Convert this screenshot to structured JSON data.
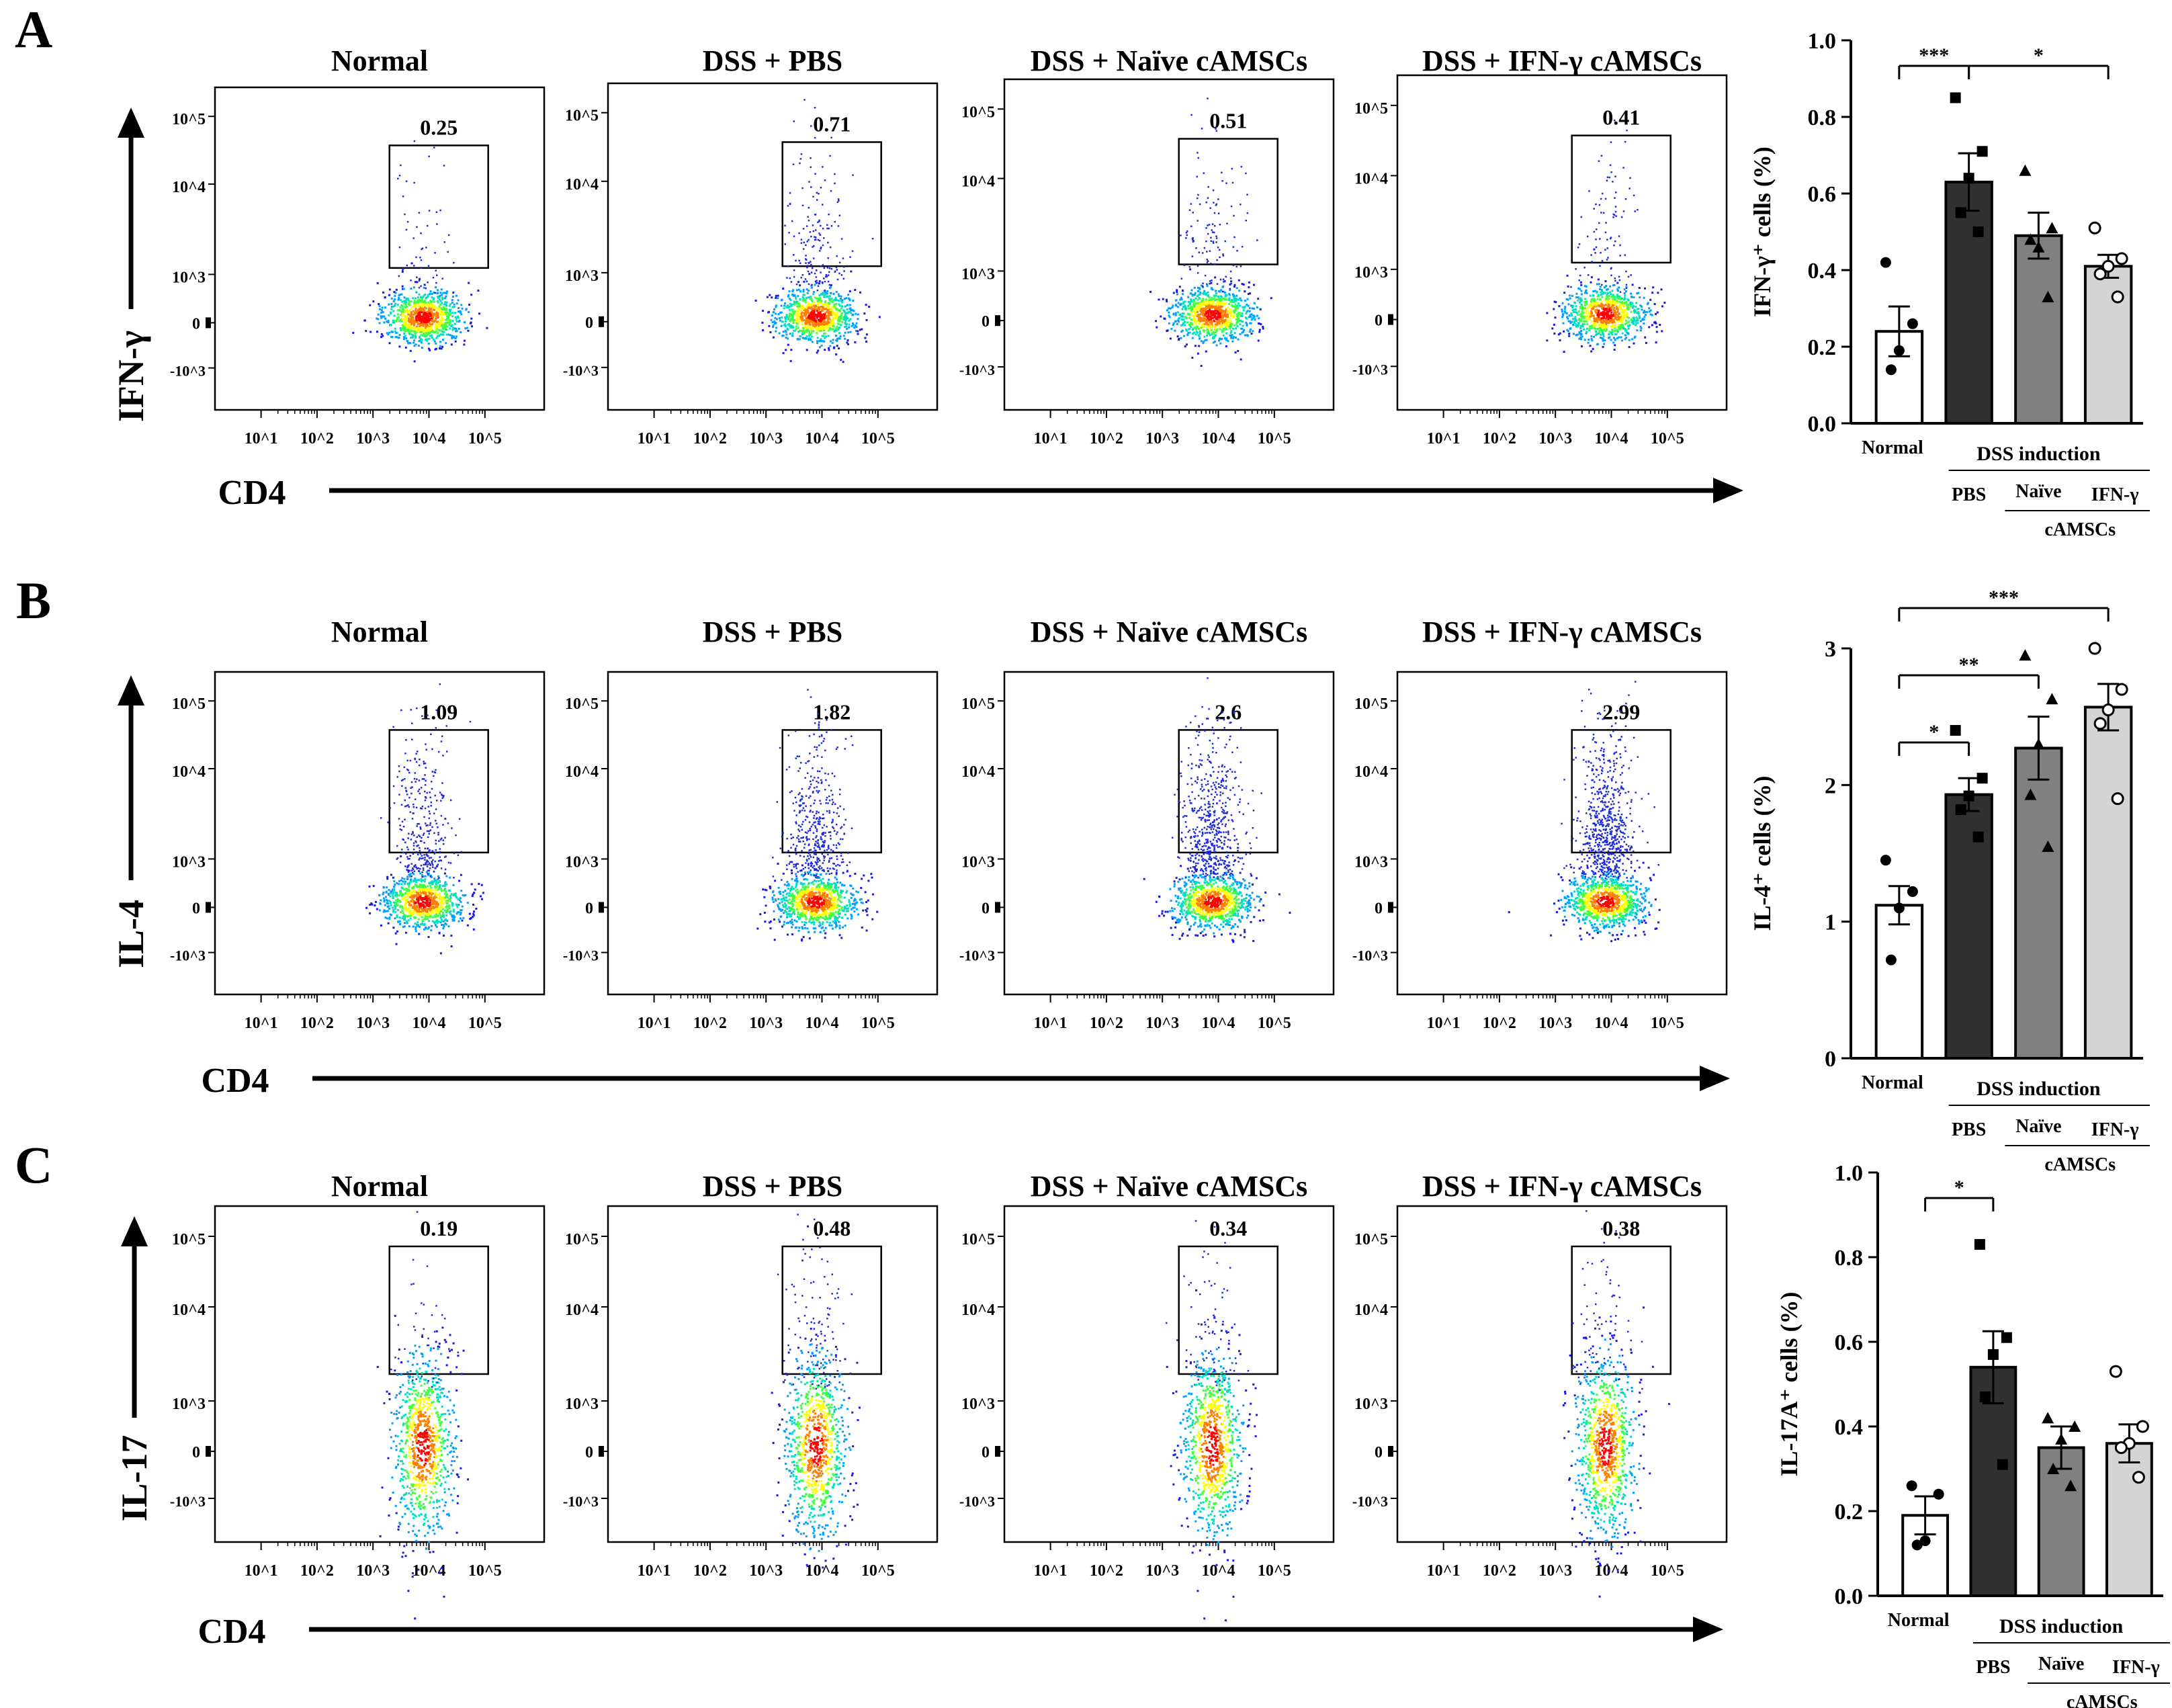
{
  "colors": {
    "ink": "#000000",
    "gate": "#000000",
    "sparse_dot": "#1f2bd6",
    "density_ramp": [
      "#1a1ae6",
      "#00a0ff",
      "#00e0c0",
      "#40ff40",
      "#ffff00",
      "#ff8000",
      "#ff0000"
    ]
  },
  "panels": [
    {
      "letter": "A",
      "y_marker": "IFN-γ",
      "x_marker": "CD4",
      "flow_plots": [
        {
          "title": "Normal",
          "gate_value": "0.25",
          "sparse": 55
        },
        {
          "title": "DSS + PBS",
          "gate_value": "0.71",
          "sparse": 170
        },
        {
          "title": "DSS + Naïve cAMSCs",
          "gate_value": "0.51",
          "sparse": 120
        },
        {
          "title": "DSS + IFN-γ cAMSCs",
          "gate_value": "0.41",
          "sparse": 90
        }
      ],
      "y_ticks": [
        "10^5",
        "10^4",
        "10^3",
        "0",
        "-10^3"
      ],
      "x_ticks": [
        "10^1",
        "10^2",
        "10^3",
        "10^4",
        "10^5"
      ]
    },
    {
      "letter": "B",
      "y_marker": "IL-4",
      "x_marker": "CD4",
      "flow_plots": [
        {
          "title": "Normal",
          "gate_value": "1.09",
          "sparse": 320
        },
        {
          "title": "DSS + PBS",
          "gate_value": "1.82",
          "sparse": 420
        },
        {
          "title": "DSS + Naïve cAMSCs",
          "gate_value": "2.6",
          "sparse": 560
        },
        {
          "title": "DSS + IFN-γ cAMSCs",
          "gate_value": "2.99",
          "sparse": 640
        }
      ],
      "y_ticks": [
        "10^5",
        "10^4",
        "10^3",
        "0",
        "-10^3"
      ],
      "x_ticks": [
        "10^1",
        "10^2",
        "10^3",
        "10^4",
        "10^5"
      ]
    },
    {
      "letter": "C",
      "y_marker": "IL-17",
      "x_marker": "CD4",
      "flow_plots": [
        {
          "title": "Normal",
          "gate_value": "0.19",
          "sparse": 40
        },
        {
          "title": "DSS + PBS",
          "gate_value": "0.48",
          "sparse": 110
        },
        {
          "title": "DSS + Naïve cAMSCs",
          "gate_value": "0.34",
          "sparse": 75
        },
        {
          "title": "DSS + IFN-γ cAMSCs",
          "gate_value": "0.38",
          "sparse": 80
        }
      ],
      "y_ticks": [
        "10^5",
        "10^4",
        "10^3",
        "0",
        "-10^3"
      ],
      "x_ticks": [
        "10^1",
        "10^2",
        "10^3",
        "10^4",
        "10^5"
      ]
    }
  ],
  "chart_data": [
    {
      "type": "bar",
      "panel": "A",
      "ylabel": "IFN-γ⁺ cells (%)",
      "ylim": [
        0,
        1.0
      ],
      "y_ticks": [
        "0.0",
        "0.2",
        "0.4",
        "0.6",
        "0.8",
        "1.0"
      ],
      "categories": [
        "Normal",
        "PBS",
        "Naïve",
        "IFN-γ"
      ],
      "values": [
        0.24,
        0.63,
        0.49,
        0.41
      ],
      "sem": [
        0.065,
        0.075,
        0.06,
        0.03
      ],
      "points": [
        [
          0.42,
          0.26,
          0.19,
          0.14
        ],
        [
          0.85,
          0.71,
          0.64,
          0.55,
          0.5
        ],
        [
          0.66,
          0.51,
          0.46,
          0.48,
          0.33
        ],
        [
          0.51,
          0.43,
          0.41,
          0.39,
          0.33
        ]
      ],
      "markers": [
        "filled-circle",
        "filled-square",
        "filled-triangle",
        "open-circle"
      ],
      "bar_fills": [
        "#ffffff",
        "#303030",
        "#808080",
        "#d4d4d4"
      ],
      "group_label": "DSS induction",
      "subgroup_label": "cAMSCs",
      "significance": [
        {
          "from": 0,
          "to": 1,
          "label": "***"
        },
        {
          "from": 1,
          "to": 3,
          "label": "*"
        }
      ]
    },
    {
      "type": "bar",
      "panel": "B",
      "ylabel": "IL-4⁺ cells (%)",
      "ylim": [
        0,
        3
      ],
      "y_ticks": [
        "0",
        "1",
        "2",
        "3"
      ],
      "categories": [
        "Normal",
        "PBS",
        "Naïve",
        "IFN-γ"
      ],
      "values": [
        1.12,
        1.93,
        2.27,
        2.57
      ],
      "sem": [
        0.14,
        0.12,
        0.23,
        0.17
      ],
      "points": [
        [
          1.45,
          1.22,
          1.1,
          0.72
        ],
        [
          2.4,
          2.05,
          1.92,
          1.82,
          1.62
        ],
        [
          2.95,
          2.63,
          2.3,
          1.93,
          1.55
        ],
        [
          3.0,
          2.7,
          2.55,
          2.45,
          1.9
        ]
      ],
      "markers": [
        "filled-circle",
        "filled-square",
        "filled-triangle",
        "open-circle"
      ],
      "bar_fills": [
        "#ffffff",
        "#303030",
        "#808080",
        "#d4d4d4"
      ],
      "group_label": "DSS induction",
      "subgroup_label": "cAMSCs",
      "significance": [
        {
          "from": 0,
          "to": 1,
          "label": "*"
        },
        {
          "from": 0,
          "to": 2,
          "label": "**"
        },
        {
          "from": 0,
          "to": 3,
          "label": "***"
        }
      ]
    },
    {
      "type": "bar",
      "panel": "C",
      "ylabel": "IL-17A⁺ cells (%)",
      "ylim": [
        0,
        1.0
      ],
      "y_ticks": [
        "0.0",
        "0.2",
        "0.4",
        "0.6",
        "0.8",
        "1.0"
      ],
      "categories": [
        "Normal",
        "PBS",
        "Naïve",
        "IFN-γ"
      ],
      "values": [
        0.19,
        0.54,
        0.35,
        0.36
      ],
      "sem": [
        0.045,
        0.085,
        0.05,
        0.045
      ],
      "points": [
        [
          0.26,
          0.24,
          0.13,
          0.12
        ],
        [
          0.83,
          0.61,
          0.57,
          0.47,
          0.31
        ],
        [
          0.42,
          0.4,
          0.37,
          0.3,
          0.26
        ],
        [
          0.53,
          0.4,
          0.36,
          0.35,
          0.28
        ]
      ],
      "markers": [
        "filled-circle",
        "filled-square",
        "filled-triangle",
        "open-circle"
      ],
      "bar_fills": [
        "#ffffff",
        "#303030",
        "#808080",
        "#d4d4d4"
      ],
      "group_label": "DSS induction",
      "subgroup_label": "cAMSCs",
      "significance": [
        {
          "from": 0,
          "to": 1,
          "label": "*"
        }
      ]
    }
  ]
}
